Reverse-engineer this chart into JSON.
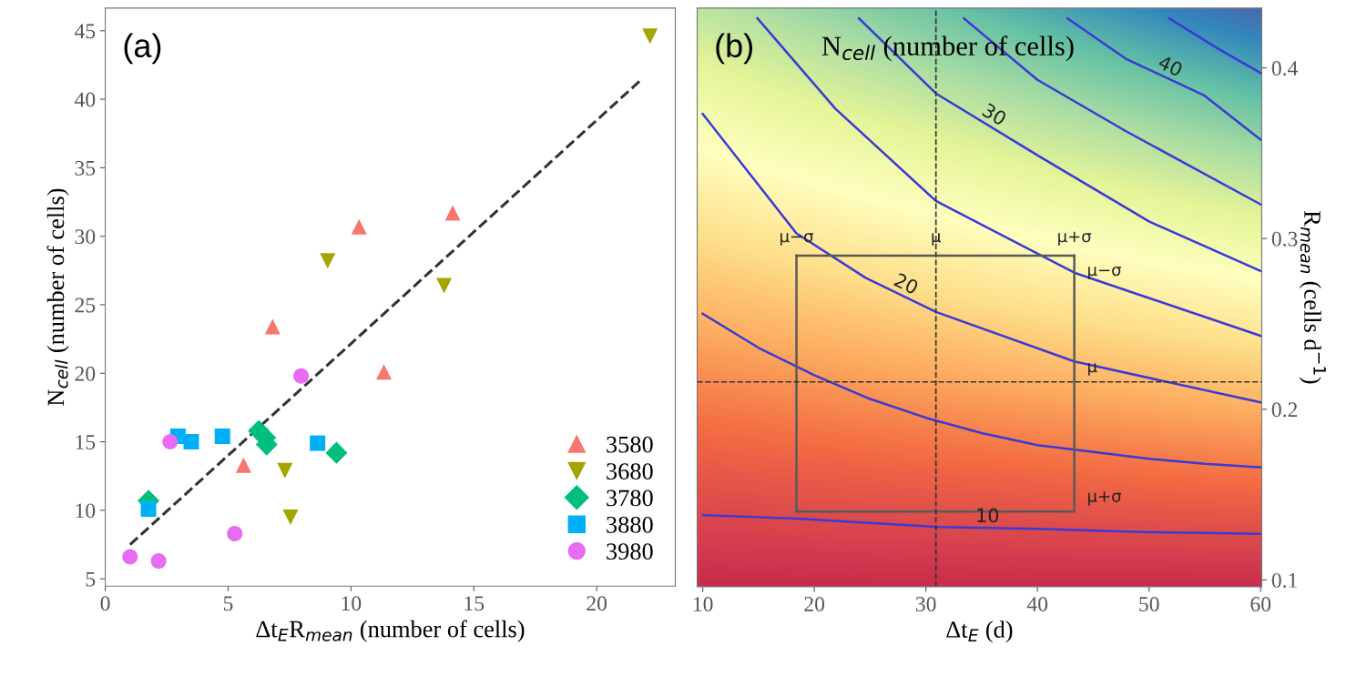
{
  "chart_data": [
    {
      "type": "scatter",
      "xlabel": "Δt$_{E}$R$_{mean}$ (number of cells)",
      "ylabel": "N$_{cell}$ (number of cells)",
      "annotations": [
        "(a)"
      ],
      "xlim": [
        0,
        23.2
      ],
      "ylim": [
        4.47,
        46.65
      ],
      "xticks": [
        0,
        5,
        10,
        15,
        20
      ],
      "yticks": [
        5,
        10,
        15,
        20,
        25,
        30,
        35,
        40,
        45
      ],
      "grid": false,
      "legend": "bottom right",
      "series": [
        {
          "name": "3580",
          "color": "#f8766d",
          "marker": "triangle",
          "x": [
            10.33,
            14.14,
            6.81,
            11.34,
            5.63
          ],
          "values": [
            30.7,
            31.7,
            23.4,
            20.1,
            13.3
          ]
        },
        {
          "name": "3680",
          "color": "#a3a500",
          "marker": "triangle_down",
          "x": [
            22.17,
            9.05,
            13.79,
            7.31,
            7.54
          ],
          "values": [
            44.6,
            28.2,
            26.4,
            12.9,
            9.5
          ]
        },
        {
          "name": "3780",
          "color": "#00bf7d",
          "marker": "diamond",
          "x": [
            1.76,
            6.25,
            6.51,
            6.57,
            9.41
          ],
          "values": [
            10.7,
            15.8,
            15.3,
            14.8,
            14.2
          ]
        },
        {
          "name": "3880",
          "color": "#00b0f6",
          "marker": "square",
          "x": [
            1.76,
            2.96,
            3.5,
            4.77,
            8.64
          ],
          "values": [
            10.1,
            15.4,
            15.0,
            15.4,
            14.9
          ]
        },
        {
          "name": "3980",
          "color": "#e76bf3",
          "marker": "circle",
          "x": [
            1.01,
            2.17,
            2.64,
            5.27,
            7.97
          ],
          "values": [
            6.6,
            6.3,
            15.0,
            8.3,
            19.8
          ]
        },
        {
          "type": "line",
          "color": "#333333",
          "line_style": "dashed",
          "x": [
            1.01,
            21.86
          ],
          "values": [
            7.5,
            41.5
          ]
        }
      ]
    },
    {
      "type": "line",
      "title": "N$_{cell}$ (number of cells)",
      "xlabel": "Δt$_{E}$ (d)",
      "ylabel": "R$_{mean}$ (cells d$^{−1}$)",
      "annotations": [
        "(b)",
        {
          "text": "μ−σ",
          "x": 18.4,
          "y": 0.29
        },
        {
          "text": "μ",
          "x": 30.9,
          "y": 0.29
        },
        {
          "text": "μ+σ",
          "x": 43.3,
          "y": 0.29
        },
        {
          "text": "μ−σ",
          "x": 43.3,
          "y": 0.29
        },
        {
          "text": "μ",
          "x": 43.3,
          "y": 0.216
        },
        {
          "text": "μ+σ",
          "x": 43.3,
          "y": 0.14
        }
      ],
      "xlim": [
        9.5,
        60.1
      ],
      "ylim": [
        0.096,
        0.435
      ],
      "xticks": [
        10,
        20,
        30,
        40,
        50,
        60
      ],
      "yticks": [
        0.1,
        0.2,
        0.3,
        0.4
      ],
      "grid": false,
      "legend": false,
      "ref_lines": [
        {
          "axis": "x",
          "value": 30.9,
          "color": "#333333",
          "line_style": "dashed"
        },
        {
          "axis": "y",
          "value": 0.216,
          "color": "#333333",
          "line_style": "dashed"
        }
      ],
      "series": [
        {
          "name": "10",
          "color": "#3a3ad6",
          "x": [
            10,
            18.4,
            31,
            40,
            50,
            60
          ],
          "values": [
            0.138,
            0.136,
            0.131,
            0.13,
            0.128,
            0.127
          ]
        },
        {
          "color": "#3a3ad6",
          "x": [
            10,
            15,
            20,
            25,
            30,
            35,
            40,
            45,
            50,
            55,
            60
          ],
          "values": [
            0.256,
            0.236,
            0.22,
            0.206,
            0.195,
            0.186,
            0.179,
            0.175,
            0.171,
            0.168,
            0.166
          ]
        },
        {
          "name": "20",
          "color": "#3a3ad6",
          "x": [
            10,
            18.4,
            24.6,
            30.9,
            43.3,
            60
          ],
          "values": [
            0.373,
            0.303,
            0.277,
            0.257,
            0.228,
            0.204
          ]
        },
        {
          "color": "#3a3ad6",
          "x": [
            14.9,
            21.9,
            30.9,
            43.3,
            60
          ],
          "values": [
            0.429,
            0.376,
            0.322,
            0.28,
            0.243
          ]
        },
        {
          "name": "30",
          "color": "#3a3ad6",
          "x": [
            24.0,
            30.9,
            40.2,
            50,
            60
          ],
          "values": [
            0.429,
            0.385,
            0.348,
            0.31,
            0.281
          ]
        },
        {
          "color": "#3a3ad6",
          "x": [
            33.4,
            40,
            47.9,
            60
          ],
          "values": [
            0.429,
            0.393,
            0.363,
            0.32
          ]
        },
        {
          "name": "40",
          "color": "#3a3ad6",
          "x": [
            42.7,
            48,
            54.9,
            60
          ],
          "values": [
            0.429,
            0.405,
            0.384,
            0.358
          ]
        },
        {
          "color": "#3a3ad6",
          "x": [
            51.8,
            56,
            60
          ],
          "values": [
            0.429,
            0.412,
            0.397
          ]
        },
        {
          "color": "#5a5a5a",
          "line_style": "solid",
          "x": [
            18.4,
            43.3
          ],
          "values": [
            0.29,
            0.29
          ]
        },
        {
          "color": "#5a5a5a",
          "line_style": "solid",
          "x": [
            43.3,
            43.3
          ],
          "values": [
            0.29,
            0.14
          ]
        },
        {
          "color": "#5a5a5a",
          "line_style": "solid",
          "x": [
            18.4,
            43.3
          ],
          "values": [
            0.14,
            0.14
          ]
        },
        {
          "color": "#5a5a5a",
          "line_style": "solid",
          "x": [
            18.4,
            18.4
          ],
          "values": [
            0.14,
            0.29
          ]
        }
      ]
    }
  ]
}
